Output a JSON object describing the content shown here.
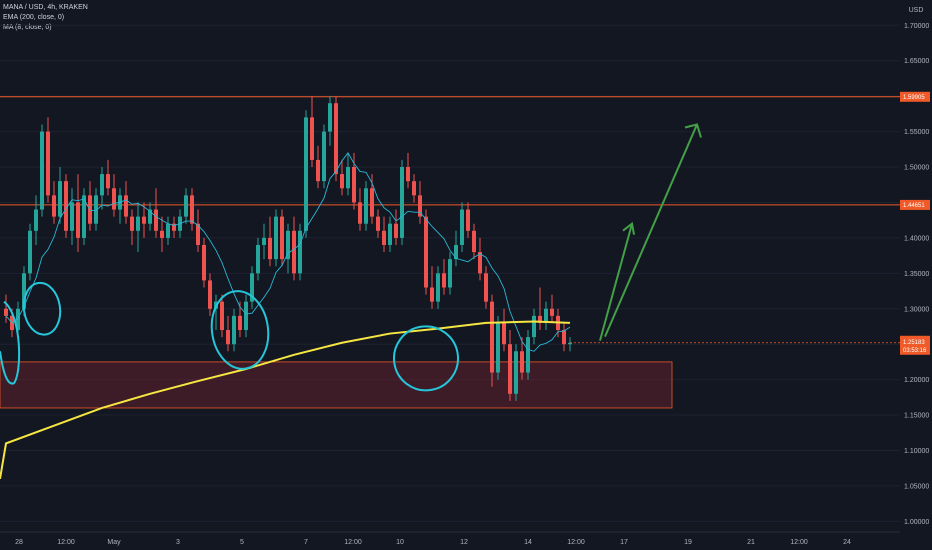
{
  "legend": {
    "symbol_line": "MANA / USD, 4h, KRAKEN",
    "ema_line": "EMA (200, close, 0)",
    "ma_line": "MA (8, close, 0)"
  },
  "price_axis": {
    "currency": "USD",
    "levels": [
      "1.70000",
      "1.65000",
      "1.60000",
      "1.55000",
      "1.50000",
      "1.45000",
      "1.40000",
      "1.35000",
      "1.30000",
      "1.25000",
      "1.20000",
      "1.15000",
      "1.10000",
      "1.05000",
      "1.00000"
    ],
    "resistance_high_tag": "1.59905",
    "resistance_mid_tag": "1.44651",
    "last_price_tag": "1.25183",
    "countdown_tag": "03:53:16"
  },
  "time_axis": {
    "labels": [
      "28",
      "12:00",
      "May",
      "3",
      "5",
      "7",
      "12:00",
      "10",
      "12",
      "14",
      "12:00",
      "17",
      "19",
      "21",
      "12:00",
      "24"
    ]
  },
  "colors": {
    "background": "#131722",
    "up_candle": "#26a69a",
    "down_candle": "#ef5350",
    "ema200": "#f5e642",
    "ma8": "#29b6d6",
    "resistance": "#f05a28",
    "support_zone": "#8b2330",
    "annotation_circle": "#26c6da",
    "projection_arrow": "#43a047",
    "price_tag": "#f05a28"
  },
  "chart_data": {
    "type": "candlestick",
    "symbol": "MANA / USD",
    "timeframe": "4h",
    "exchange": "KRAKEN",
    "y_range": [
      0.985,
      1.73
    ],
    "resistance_levels": [
      1.59905,
      1.44651
    ],
    "support_zone": [
      1.16,
      1.225
    ],
    "candles_ohlc": [
      [
        1.3,
        1.32,
        1.28,
        1.29
      ],
      [
        1.29,
        1.3,
        1.26,
        1.27
      ],
      [
        1.27,
        1.31,
        1.26,
        1.3
      ],
      [
        1.3,
        1.36,
        1.29,
        1.35
      ],
      [
        1.35,
        1.42,
        1.34,
        1.41
      ],
      [
        1.41,
        1.46,
        1.39,
        1.44
      ],
      [
        1.44,
        1.56,
        1.43,
        1.55
      ],
      [
        1.55,
        1.57,
        1.45,
        1.46
      ],
      [
        1.46,
        1.48,
        1.42,
        1.43
      ],
      [
        1.43,
        1.5,
        1.42,
        1.48
      ],
      [
        1.48,
        1.49,
        1.4,
        1.41
      ],
      [
        1.41,
        1.47,
        1.39,
        1.45
      ],
      [
        1.45,
        1.49,
        1.38,
        1.4
      ],
      [
        1.4,
        1.47,
        1.39,
        1.46
      ],
      [
        1.46,
        1.48,
        1.41,
        1.42
      ],
      [
        1.42,
        1.47,
        1.41,
        1.46
      ],
      [
        1.46,
        1.5,
        1.44,
        1.49
      ],
      [
        1.49,
        1.51,
        1.46,
        1.47
      ],
      [
        1.47,
        1.49,
        1.43,
        1.44
      ],
      [
        1.44,
        1.47,
        1.42,
        1.46
      ],
      [
        1.46,
        1.48,
        1.42,
        1.43
      ],
      [
        1.43,
        1.44,
        1.39,
        1.41
      ],
      [
        1.41,
        1.45,
        1.38,
        1.43
      ],
      [
        1.43,
        1.45,
        1.4,
        1.42
      ],
      [
        1.42,
        1.45,
        1.41,
        1.44
      ],
      [
        1.44,
        1.47,
        1.4,
        1.41
      ],
      [
        1.41,
        1.43,
        1.38,
        1.4
      ],
      [
        1.4,
        1.43,
        1.39,
        1.42
      ],
      [
        1.42,
        1.43,
        1.4,
        1.41
      ],
      [
        1.41,
        1.44,
        1.4,
        1.43
      ],
      [
        1.43,
        1.47,
        1.42,
        1.46
      ],
      [
        1.46,
        1.47,
        1.41,
        1.42
      ],
      [
        1.42,
        1.44,
        1.38,
        1.39
      ],
      [
        1.39,
        1.4,
        1.33,
        1.34
      ],
      [
        1.34,
        1.35,
        1.29,
        1.3
      ],
      [
        1.3,
        1.32,
        1.27,
        1.31
      ],
      [
        1.31,
        1.32,
        1.26,
        1.27
      ],
      [
        1.27,
        1.29,
        1.24,
        1.25
      ],
      [
        1.25,
        1.3,
        1.24,
        1.29
      ],
      [
        1.29,
        1.31,
        1.26,
        1.27
      ],
      [
        1.27,
        1.32,
        1.26,
        1.31
      ],
      [
        1.31,
        1.36,
        1.3,
        1.35
      ],
      [
        1.35,
        1.4,
        1.34,
        1.39
      ],
      [
        1.39,
        1.42,
        1.37,
        1.4
      ],
      [
        1.4,
        1.43,
        1.36,
        1.37
      ],
      [
        1.37,
        1.44,
        1.36,
        1.43
      ],
      [
        1.43,
        1.44,
        1.36,
        1.37
      ],
      [
        1.37,
        1.42,
        1.35,
        1.41
      ],
      [
        1.41,
        1.43,
        1.34,
        1.35
      ],
      [
        1.35,
        1.42,
        1.34,
        1.41
      ],
      [
        1.41,
        1.58,
        1.4,
        1.57
      ],
      [
        1.57,
        1.6,
        1.5,
        1.51
      ],
      [
        1.51,
        1.53,
        1.47,
        1.48
      ],
      [
        1.48,
        1.56,
        1.47,
        1.55
      ],
      [
        1.55,
        1.6,
        1.53,
        1.59
      ],
      [
        1.59,
        1.6,
        1.48,
        1.49
      ],
      [
        1.49,
        1.51,
        1.46,
        1.47
      ],
      [
        1.47,
        1.52,
        1.46,
        1.5
      ],
      [
        1.5,
        1.52,
        1.44,
        1.45
      ],
      [
        1.45,
        1.47,
        1.41,
        1.42
      ],
      [
        1.42,
        1.48,
        1.41,
        1.47
      ],
      [
        1.47,
        1.49,
        1.42,
        1.43
      ],
      [
        1.43,
        1.44,
        1.4,
        1.41
      ],
      [
        1.41,
        1.43,
        1.38,
        1.39
      ],
      [
        1.39,
        1.43,
        1.38,
        1.42
      ],
      [
        1.42,
        1.44,
        1.39,
        1.4
      ],
      [
        1.4,
        1.51,
        1.39,
        1.5
      ],
      [
        1.5,
        1.52,
        1.47,
        1.48
      ],
      [
        1.48,
        1.49,
        1.45,
        1.46
      ],
      [
        1.46,
        1.48,
        1.42,
        1.43
      ],
      [
        1.43,
        1.44,
        1.32,
        1.33
      ],
      [
        1.33,
        1.36,
        1.3,
        1.31
      ],
      [
        1.31,
        1.36,
        1.3,
        1.35
      ],
      [
        1.35,
        1.37,
        1.32,
        1.33
      ],
      [
        1.33,
        1.38,
        1.32,
        1.37
      ],
      [
        1.37,
        1.41,
        1.36,
        1.39
      ],
      [
        1.39,
        1.45,
        1.38,
        1.44
      ],
      [
        1.44,
        1.45,
        1.4,
        1.41
      ],
      [
        1.41,
        1.42,
        1.37,
        1.38
      ],
      [
        1.38,
        1.4,
        1.34,
        1.35
      ],
      [
        1.35,
        1.36,
        1.3,
        1.31
      ],
      [
        1.31,
        1.32,
        1.19,
        1.21
      ],
      [
        1.21,
        1.29,
        1.2,
        1.28
      ],
      [
        1.28,
        1.3,
        1.24,
        1.25
      ],
      [
        1.25,
        1.27,
        1.17,
        1.18
      ],
      [
        1.18,
        1.25,
        1.17,
        1.24
      ],
      [
        1.24,
        1.26,
        1.2,
        1.21
      ],
      [
        1.21,
        1.27,
        1.2,
        1.26
      ],
      [
        1.26,
        1.3,
        1.25,
        1.29
      ],
      [
        1.29,
        1.33,
        1.27,
        1.28
      ],
      [
        1.28,
        1.31,
        1.27,
        1.3
      ],
      [
        1.3,
        1.32,
        1.28,
        1.29
      ],
      [
        1.29,
        1.3,
        1.26,
        1.27
      ],
      [
        1.27,
        1.28,
        1.24,
        1.25
      ],
      [
        1.25,
        1.26,
        1.24,
        1.252
      ]
    ],
    "ema200": [
      [
        0,
        1.11
      ],
      [
        8,
        1.135
      ],
      [
        16,
        1.16
      ],
      [
        24,
        1.18
      ],
      [
        32,
        1.198
      ],
      [
        40,
        1.215
      ],
      [
        48,
        1.235
      ],
      [
        56,
        1.252
      ],
      [
        64,
        1.265
      ],
      [
        72,
        1.272
      ],
      [
        80,
        1.28
      ],
      [
        88,
        1.282
      ],
      [
        94,
        1.28
      ]
    ],
    "ma8_line_overlay": true,
    "annotations": {
      "circles": 4,
      "projection_arrows": 2,
      "projection_target": 1.56
    }
  }
}
